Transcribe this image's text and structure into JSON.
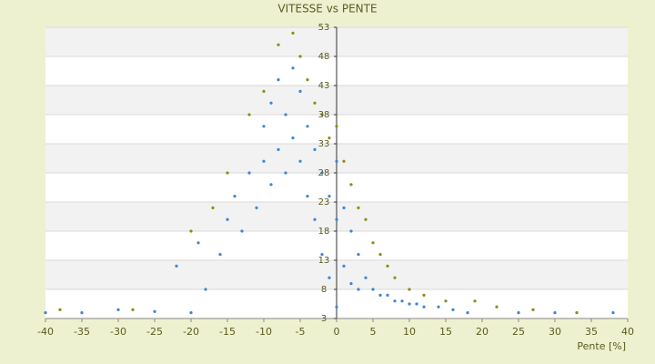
{
  "chart_data": {
    "type": "scatter",
    "title": "VITESSE vs PENTE",
    "x_label": "Pente [%]",
    "xlim": [
      -40,
      40
    ],
    "xticks": [
      -40,
      -35,
      -30,
      -25,
      -20,
      -15,
      -10,
      -5,
      0,
      5,
      10,
      15,
      20,
      25,
      30,
      35,
      40
    ],
    "ylim": [
      3,
      53
    ],
    "yticks": [
      3,
      8,
      13,
      18,
      23,
      28,
      33,
      38,
      43,
      48,
      53
    ],
    "grid": true,
    "series": [
      {
        "color": "#3a86d4",
        "x": [
          -40,
          -35,
          -30,
          -25,
          -20,
          -18,
          -16,
          -15,
          -14,
          -13,
          -12,
          -11,
          -10,
          -10,
          -9,
          -9,
          -8,
          -8,
          -7,
          -7,
          -6,
          -6,
          -5,
          -5,
          -4,
          -4,
          -3,
          -3,
          -2,
          -2,
          -1,
          -1,
          0,
          0,
          0,
          1,
          1,
          2,
          2,
          3,
          3,
          4,
          5,
          6,
          7,
          8,
          9,
          10,
          11,
          12,
          14,
          16,
          18,
          25,
          30,
          38,
          -22,
          -19
        ],
        "values": [
          4,
          4,
          4.5,
          4.2,
          4,
          8,
          14,
          20,
          24,
          18,
          28,
          22,
          30,
          36,
          26,
          40,
          32,
          44,
          38,
          28,
          46,
          34,
          42,
          30,
          36,
          24,
          32,
          20,
          28,
          14,
          24,
          10,
          30,
          20,
          5,
          22,
          12,
          18,
          9,
          14,
          8,
          10,
          8,
          7,
          7,
          6,
          6,
          5.5,
          5.5,
          5,
          5,
          4.5,
          4,
          4,
          4,
          4,
          12,
          16
        ]
      },
      {
        "color": "#8c8c10",
        "x": [
          -38,
          -28,
          -15,
          -12,
          -10,
          -8,
          -6,
          -5,
          -4,
          -3,
          -2,
          -1,
          0,
          1,
          2,
          3,
          4,
          5,
          6,
          7,
          8,
          10,
          12,
          15,
          19,
          22,
          27,
          33,
          -20,
          -17
        ],
        "values": [
          4.5,
          4.5,
          28,
          38,
          42,
          50,
          52,
          48,
          44,
          40,
          38,
          34,
          36,
          30,
          26,
          22,
          20,
          16,
          14,
          12,
          10,
          8,
          7,
          6,
          6,
          5,
          4.5,
          4,
          18,
          22
        ]
      }
    ]
  }
}
